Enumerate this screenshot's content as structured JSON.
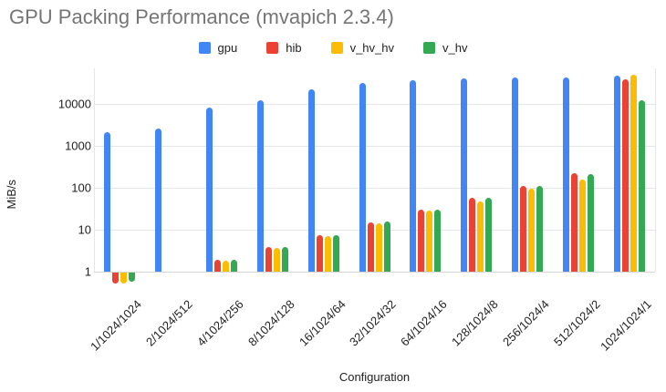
{
  "title": "GPU Packing Performance (mvapich 2.3.4)",
  "chart_data": {
    "type": "bar",
    "title": "GPU Packing Performance (mvapich 2.3.4)",
    "xlabel": "Configuration",
    "ylabel": "MiB/s",
    "y_scale": "log",
    "y_ticks": [
      1,
      10,
      100,
      1000,
      10000
    ],
    "ylim": [
      0.5,
      70000
    ],
    "grid": true,
    "legend_position": "top",
    "categories": [
      "1/1024/1024",
      "2/1024/512",
      "4/1024/256",
      "8/1024/128",
      "16/1024/64",
      "32/1024/32",
      "64/1024/16",
      "128/1024/8",
      "256/1024/4",
      "512/1024/2",
      "1024/1024/1"
    ],
    "series": [
      {
        "name": "gpu",
        "color": "#4285F4",
        "values": [
          2100,
          2600,
          8000,
          12000,
          22000,
          31000,
          37000,
          40000,
          42000,
          42000,
          47000
        ]
      },
      {
        "name": "hib",
        "color": "#EA4335",
        "values": [
          0.55,
          null,
          1.9,
          3.8,
          7.5,
          15,
          30,
          57,
          110,
          220,
          39000
        ]
      },
      {
        "name": "v_hv_hv",
        "color": "#FBBC04",
        "values": [
          0.55,
          null,
          1.8,
          3.6,
          7.2,
          14,
          28,
          47,
          97,
          155,
          50000
        ]
      },
      {
        "name": "v_hv",
        "color": "#34A853",
        "values": [
          0.6,
          null,
          1.9,
          3.8,
          7.5,
          15.5,
          30,
          58,
          113,
          210,
          12400
        ]
      }
    ]
  },
  "colors": {
    "title_text": "#757575",
    "axis_text": "#222222",
    "gridline": "#e6e6e6",
    "background": "#ffffff"
  }
}
